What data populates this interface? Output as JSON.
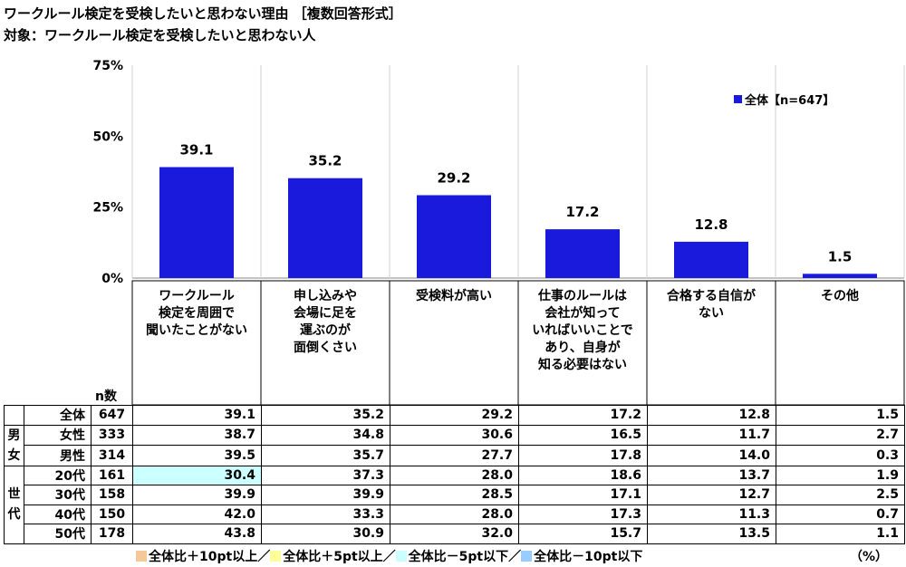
{
  "title": "ワークルール検定を受検したいと思わない理由 ［複数回答形式］",
  "target": "対象：ワークルール検定を受検したいと思わない人",
  "colors": {
    "bar": "#1a1adc",
    "plus10": "#f5c89a",
    "plus5": "#ffff99",
    "minus5": "#ccffff",
    "minus10": "#99ccff"
  },
  "chart_data": {
    "type": "bar",
    "categories": [
      "ワークルール検定を周囲で聞いたことがない",
      "申し込みや会場に足を運ぶのが面倒くさい",
      "受検料が高い",
      "仕事のルールは会社が知っていればいいことであり、自身が知る必要はない",
      "合格する自信がない",
      "その他"
    ],
    "category_lines": [
      [
        "ワークルール",
        "検定を周囲で",
        "聞いたことがない"
      ],
      [
        "申し込みや",
        "会場に足を",
        "運ぶのが",
        "面倒くさい"
      ],
      [
        "受検料が高い"
      ],
      [
        "仕事のルールは",
        "会社が知って",
        "いればいいことで",
        "あり、自身が",
        "知る必要はない"
      ],
      [
        "合格する自信が",
        "ない"
      ],
      [
        "その他"
      ]
    ],
    "series": [
      {
        "name": "全体【n=647】",
        "values": [
          39.1,
          35.2,
          29.2,
          17.2,
          12.8,
          1.5
        ]
      }
    ],
    "value_labels": [
      "39.1",
      "35.2",
      "29.2",
      "17.2",
      "12.8",
      "1.5"
    ],
    "ylim": [
      0,
      75
    ],
    "yticks": [
      0,
      25,
      50,
      75
    ],
    "ytick_labels": [
      "0%",
      "25%",
      "50%",
      "75%"
    ],
    "legend_placement": "top-right",
    "grid": "vertical separators"
  },
  "legend_label": "全体【n=647】",
  "table": {
    "n_header": "n数",
    "groups": [
      {
        "label": "",
        "rows": [
          {
            "label": "全体",
            "n": "647",
            "values": [
              "39.1",
              "35.2",
              "29.2",
              "17.2",
              "12.8",
              "1.5"
            ],
            "highlights": [
              "",
              "",
              "",
              "",
              "",
              ""
            ]
          }
        ]
      },
      {
        "label": "男女",
        "rows": [
          {
            "label": "女性",
            "n": "333",
            "values": [
              "38.7",
              "34.8",
              "30.6",
              "16.5",
              "11.7",
              "2.7"
            ],
            "highlights": [
              "",
              "",
              "",
              "",
              "",
              ""
            ]
          },
          {
            "label": "男性",
            "n": "314",
            "values": [
              "39.5",
              "35.7",
              "27.7",
              "17.8",
              "14.0",
              "0.3"
            ],
            "highlights": [
              "",
              "",
              "",
              "",
              "",
              ""
            ]
          }
        ]
      },
      {
        "label": "世代",
        "rows": [
          {
            "label": "20代",
            "n": "161",
            "values": [
              "30.4",
              "37.3",
              "28.0",
              "18.6",
              "13.7",
              "1.9"
            ],
            "highlights": [
              "low5",
              "",
              "",
              "",
              "",
              ""
            ]
          },
          {
            "label": "30代",
            "n": "158",
            "values": [
              "39.9",
              "39.9",
              "28.5",
              "17.1",
              "12.7",
              "2.5"
            ],
            "highlights": [
              "",
              "",
              "",
              "",
              "",
              ""
            ]
          },
          {
            "label": "40代",
            "n": "150",
            "values": [
              "42.0",
              "33.3",
              "28.0",
              "17.3",
              "11.3",
              "0.7"
            ],
            "highlights": [
              "",
              "",
              "",
              "",
              "",
              ""
            ]
          },
          {
            "label": "50代",
            "n": "178",
            "values": [
              "43.8",
              "30.9",
              "32.0",
              "15.7",
              "13.5",
              "1.1"
            ],
            "highlights": [
              "",
              "",
              "",
              "",
              "",
              ""
            ]
          }
        ]
      }
    ]
  },
  "footer": {
    "items": [
      "全体比＋10pt以上／",
      "全体比＋5pt以上／",
      "全体比－5pt以下／",
      "全体比－10pt以下"
    ],
    "unit": "（%）"
  }
}
